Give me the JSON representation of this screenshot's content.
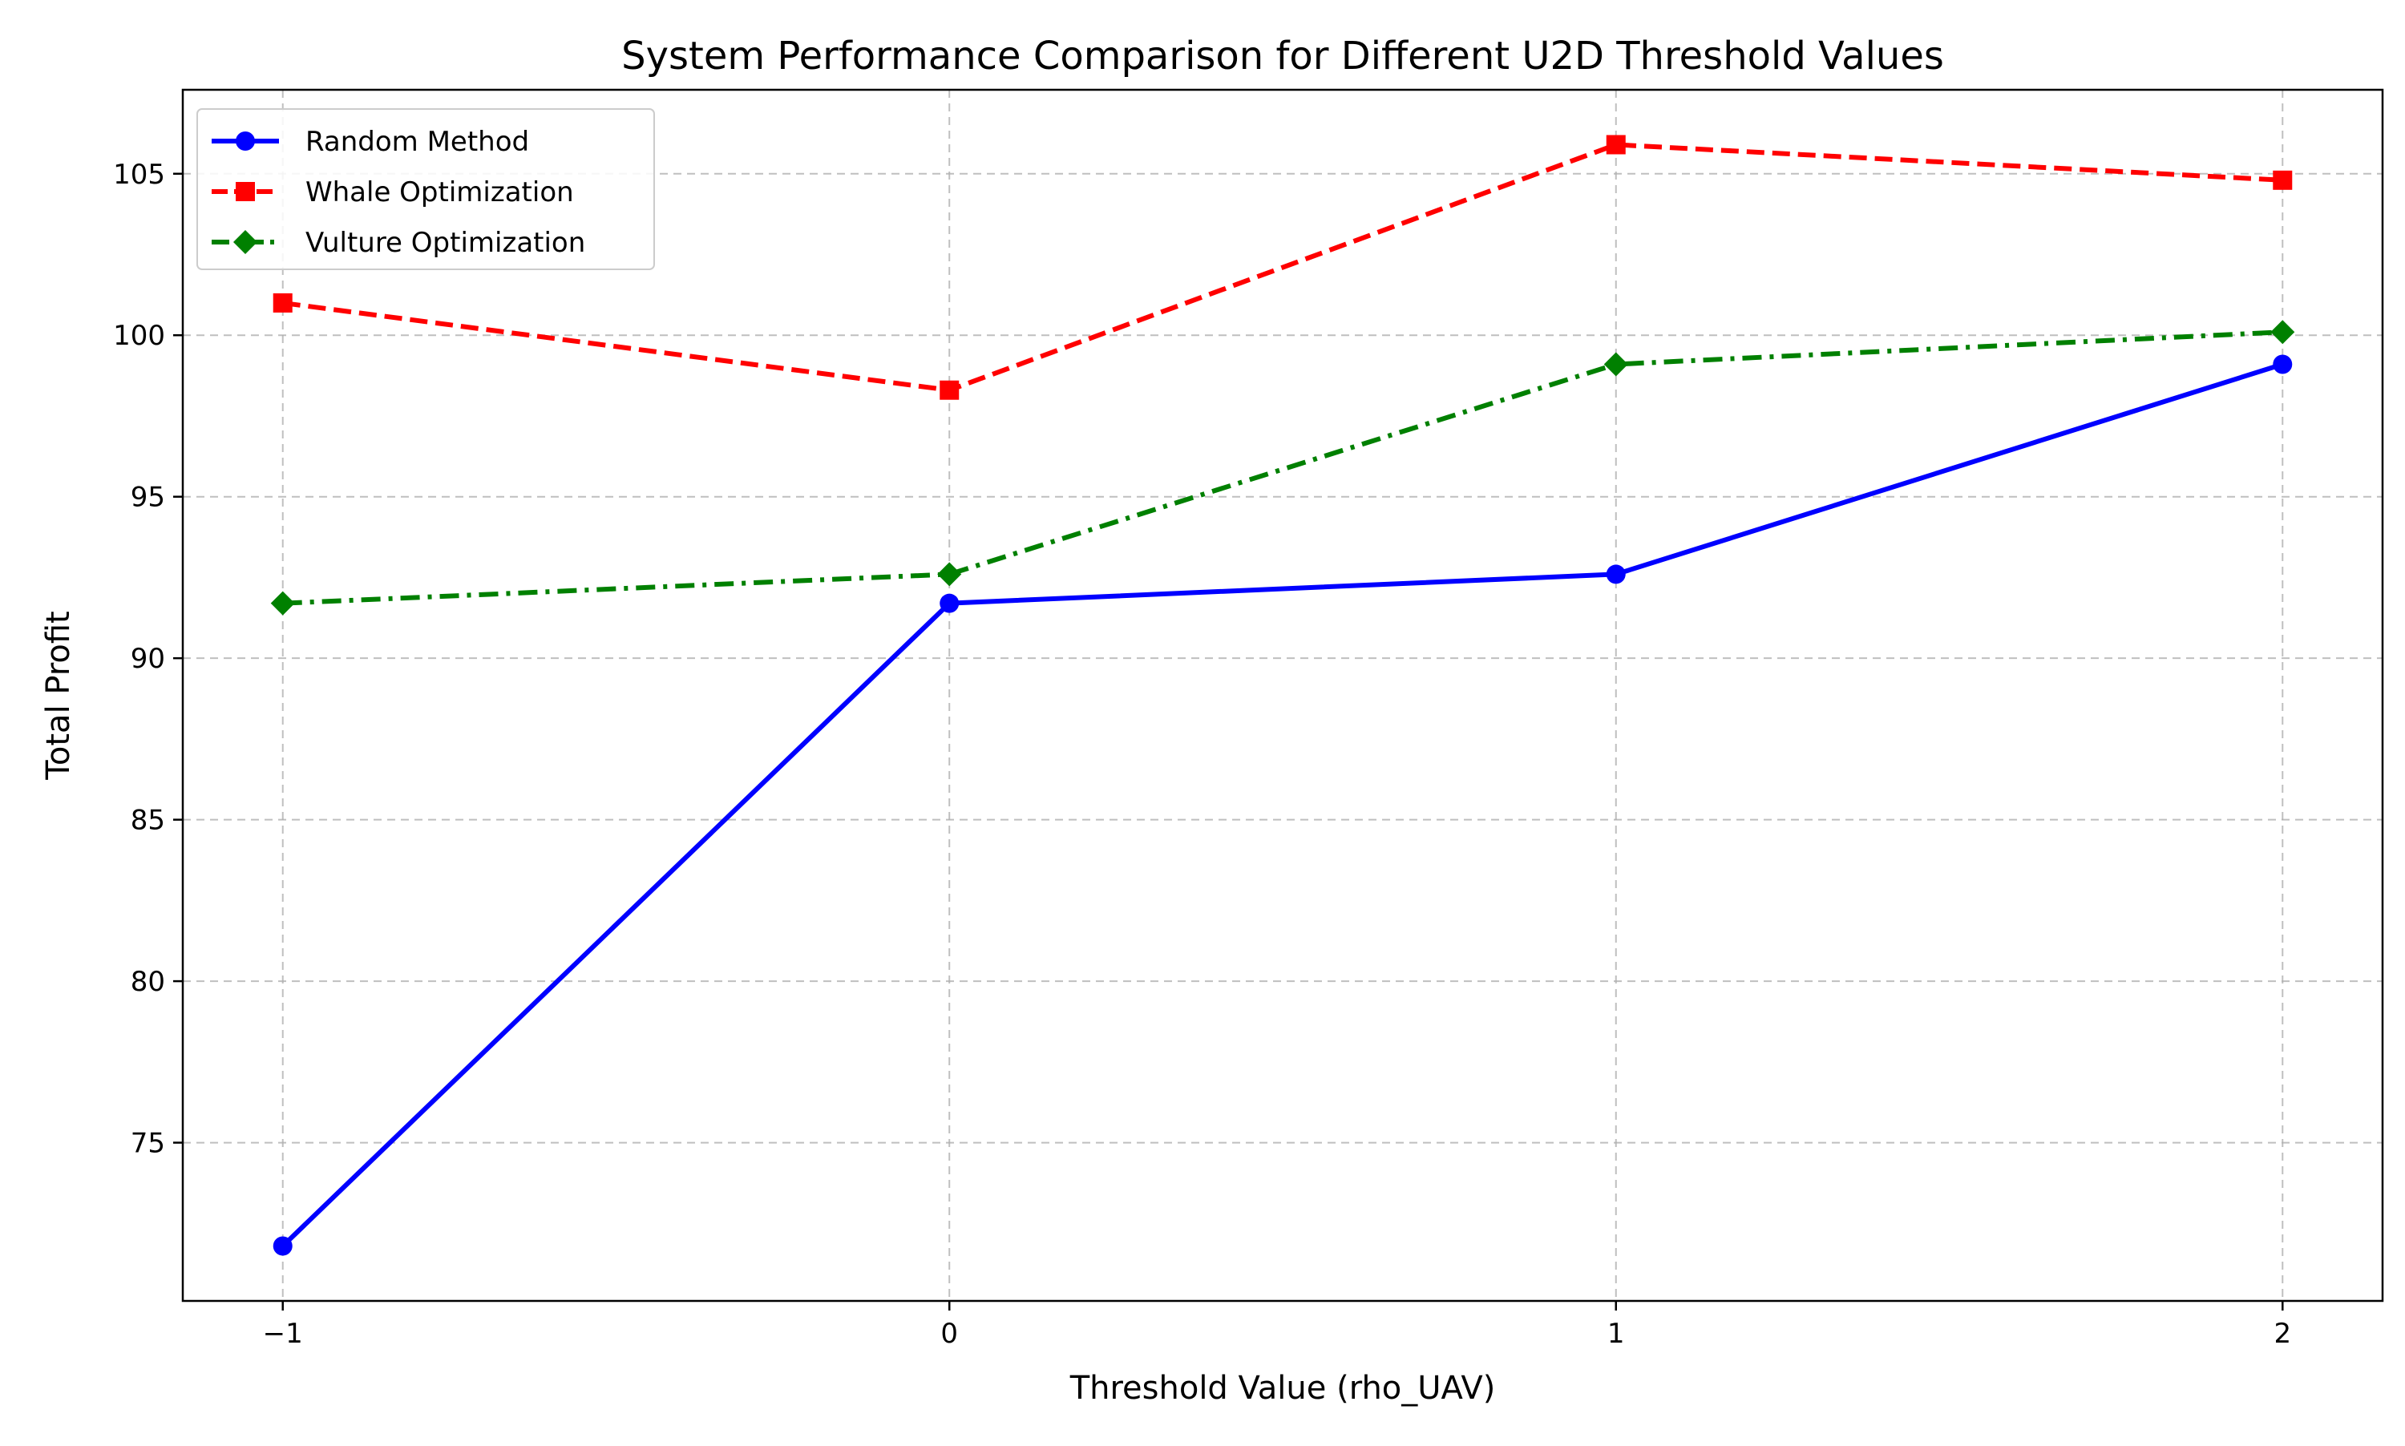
{
  "chart_data": {
    "type": "line",
    "title": "System Performance Comparison for Different U2D Threshold Values",
    "xlabel": "Threshold Value (rho_UAV)",
    "ylabel": "Total Profit",
    "x": [
      -1,
      0,
      1,
      2
    ],
    "x_ticks": [
      "−1",
      "0",
      "1",
      "2"
    ],
    "y_ticks": [
      "75",
      "80",
      "85",
      "90",
      "95",
      "100",
      "105"
    ],
    "y_tick_values": [
      75,
      80,
      85,
      90,
      95,
      100,
      105
    ],
    "xlim": [
      -1.15,
      2.15
    ],
    "ylim": [
      70.1,
      107.6
    ],
    "grid": true,
    "legend_position": "upper-left",
    "series": [
      {
        "name": "Random Method",
        "values": [
          71.8,
          91.7,
          92.6,
          99.1
        ],
        "color": "#0000ff",
        "line_style": "solid",
        "marker": "circle"
      },
      {
        "name": "Whale Optimization",
        "values": [
          101.0,
          98.3,
          105.9,
          104.8
        ],
        "color": "#ff0000",
        "line_style": "dashed",
        "marker": "square"
      },
      {
        "name": "Vulture Optimization",
        "values": [
          91.7,
          92.6,
          99.1,
          100.1
        ],
        "color": "#008000",
        "line_style": "dashdot",
        "marker": "diamond"
      }
    ]
  }
}
